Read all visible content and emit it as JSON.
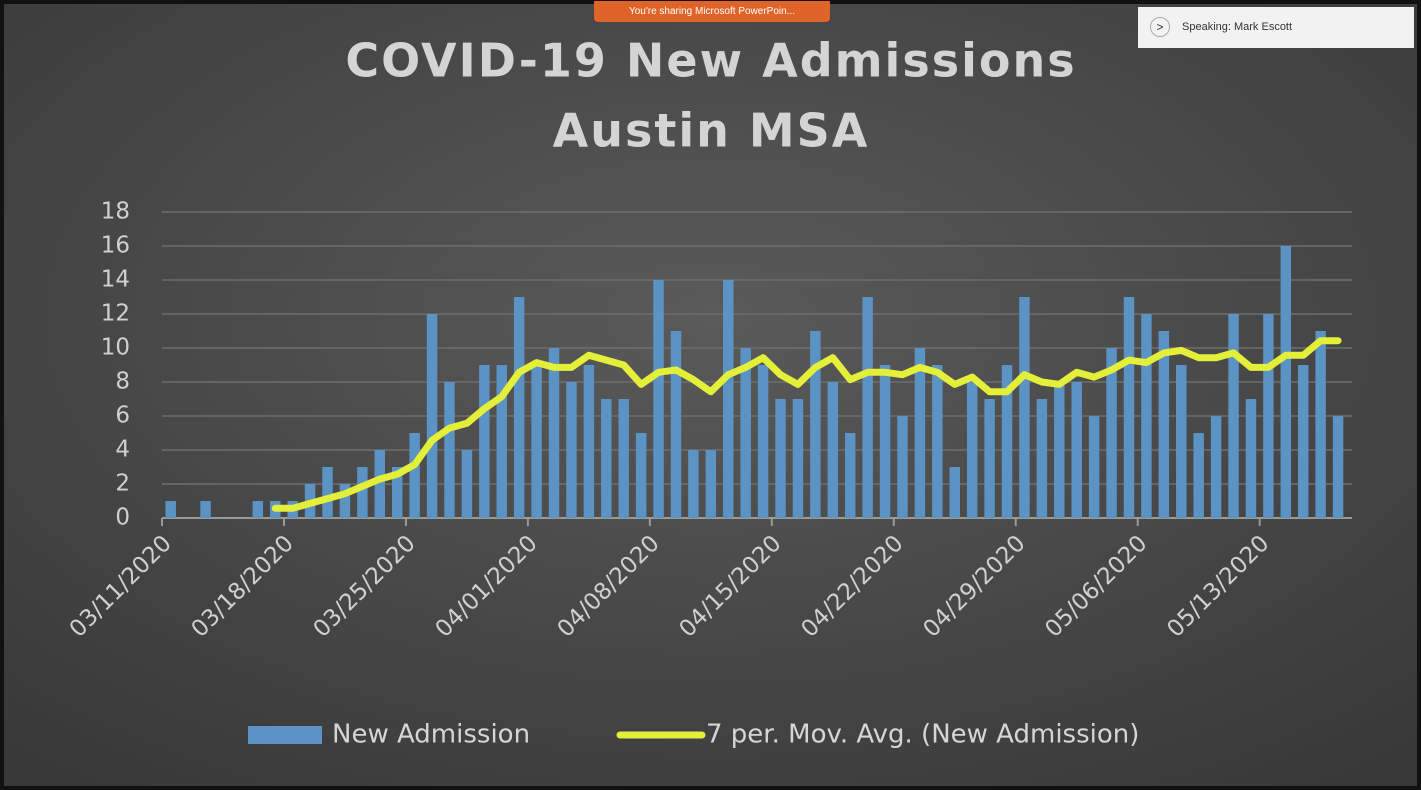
{
  "sharing_banner": "You're sharing Microsoft PowerPoin...",
  "speaking_label": "Speaking: Mark Escott",
  "chart_data": {
    "type": "bar",
    "title": [
      "COVID-19 New Admissions",
      "Austin MSA"
    ],
    "categories": [
      "03/11/2020",
      null,
      null,
      null,
      null,
      null,
      null,
      "03/18/2020",
      null,
      null,
      null,
      null,
      null,
      null,
      "03/25/2020",
      null,
      null,
      null,
      null,
      null,
      null,
      "04/01/2020",
      null,
      null,
      null,
      null,
      null,
      null,
      "04/08/2020",
      null,
      null,
      null,
      null,
      null,
      null,
      "04/15/2020",
      null,
      null,
      null,
      null,
      null,
      null,
      "04/22/2020",
      null,
      null,
      null,
      null,
      null,
      null,
      "04/29/2020",
      null,
      null,
      null,
      null,
      null,
      null,
      "05/06/2020",
      null,
      null,
      null,
      null,
      null,
      null,
      "05/13/2020",
      null,
      null,
      null,
      null
    ],
    "series": [
      {
        "name": "New Admission",
        "type": "bar",
        "color": "#5b93c4",
        "values": [
          1,
          0,
          1,
          0,
          0,
          1,
          1,
          1,
          2,
          3,
          2,
          3,
          4,
          3,
          5,
          12,
          8,
          4,
          9,
          9,
          13,
          9,
          10,
          8,
          9,
          7,
          7,
          5,
          14,
          11,
          4,
          4,
          14,
          10,
          9,
          7,
          7,
          11,
          8,
          5,
          13,
          9,
          6,
          10,
          9,
          3,
          8,
          7,
          9,
          13,
          7,
          8,
          8,
          6,
          10,
          13,
          12,
          11,
          9,
          5,
          6,
          12,
          7,
          12,
          16,
          9,
          11,
          6
        ]
      },
      {
        "name": "7 per. Mov. Avg. (New Admission)",
        "type": "line",
        "color": "#e4ef3a",
        "values": [
          null,
          null,
          null,
          null,
          null,
          null,
          0.57,
          0.57,
          0.86,
          1.14,
          1.43,
          1.86,
          2.29,
          2.57,
          3.14,
          4.57,
          5.29,
          5.57,
          6.43,
          7.14,
          8.57,
          9.14,
          8.86,
          8.86,
          9.57,
          9.29,
          9.0,
          7.86,
          8.57,
          8.71,
          8.14,
          7.43,
          8.43,
          8.86,
          9.43,
          8.43,
          7.86,
          8.86,
          9.43,
          8.14,
          8.57,
          8.57,
          8.43,
          8.86,
          8.57,
          7.86,
          8.29,
          7.43,
          7.43,
          8.43,
          8.0,
          7.86,
          8.57,
          8.29,
          8.71,
          9.29,
          9.14,
          9.71,
          9.86,
          9.43,
          9.43,
          9.71,
          8.86,
          8.86,
          9.57,
          9.57,
          10.43,
          10.43
        ]
      }
    ],
    "ylim": [
      0,
      18
    ],
    "yticks": [
      0,
      2,
      4,
      6,
      8,
      10,
      12,
      14,
      16,
      18
    ],
    "grid": true,
    "legend": "bottom"
  }
}
